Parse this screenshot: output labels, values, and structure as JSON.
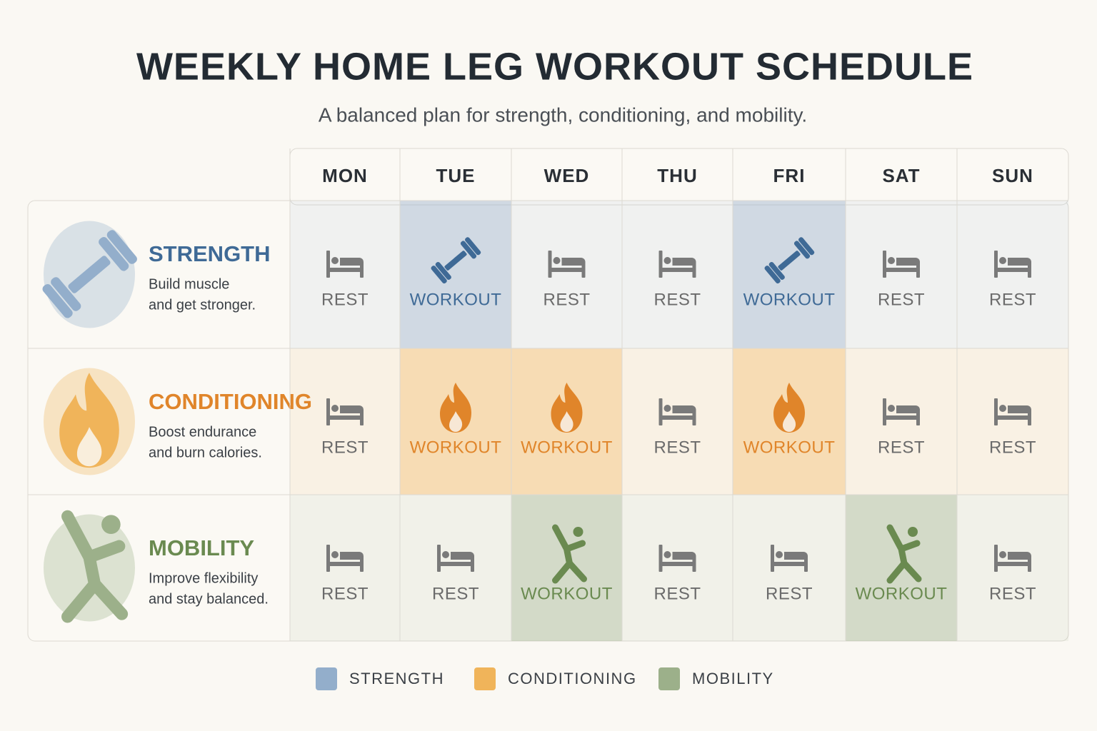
{
  "title": "WEEKLY HOME LEG WORKOUT SCHEDULE",
  "subtitle": "A balanced plan for strength, conditioning, and mobility.",
  "table": {
    "days": [
      "MON",
      "TUE",
      "WED",
      "THU",
      "FRI",
      "SAT",
      "SUN"
    ],
    "rows": [
      {
        "name": "STRENGTH",
        "color": "#3f6a96",
        "swatch": "#93aecb",
        "description": [
          "Build muscle",
          "and get stronger."
        ],
        "cells": [
          "REST",
          "WORKOUT",
          "REST",
          "REST",
          "WORKOUT",
          "REST",
          "REST"
        ]
      },
      {
        "name": "CONDITIONING",
        "color": "#e0852a",
        "swatch": "#f0b45a",
        "description": [
          "Boost endurance",
          "and burn calories."
        ],
        "cells": [
          "REST",
          "WORKOUT",
          "WORKOUT",
          "REST",
          "WORKOUT",
          "REST",
          "REST"
        ]
      },
      {
        "name": "MOBILITY",
        "color": "#6a8a50",
        "swatch": "#9cb08a",
        "description": [
          "Improve flexibility",
          "and stay balanced."
        ],
        "cells": [
          "REST",
          "REST",
          "WORKOUT",
          "REST",
          "REST",
          "WORKOUT",
          "REST"
        ]
      }
    ]
  },
  "legend": [
    "STRENGTH",
    "CONDITIONING",
    "MOBILITY"
  ]
}
